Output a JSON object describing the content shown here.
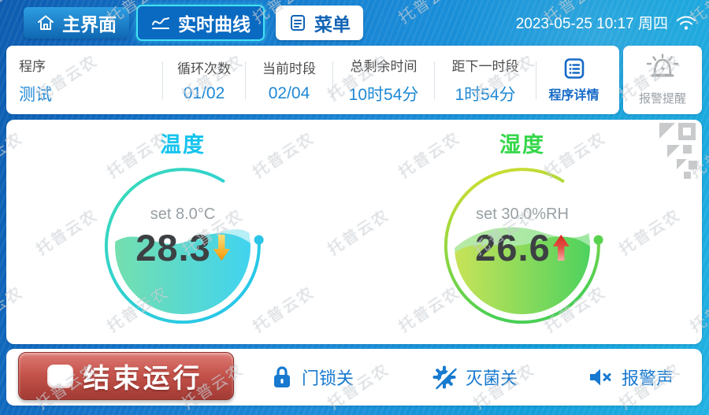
{
  "header": {
    "tabs": [
      {
        "label": "主界面"
      },
      {
        "label": "实时曲线"
      },
      {
        "label": "菜单"
      }
    ],
    "datetime": "2023-05-25 10:17 周四"
  },
  "status_bar": {
    "items": [
      {
        "label": "程序",
        "value": "测试"
      },
      {
        "label": "循环次数",
        "value": "01/02"
      },
      {
        "label": "当前时段",
        "value": "02/04"
      },
      {
        "label": "总剩余时间",
        "value": "10时54分"
      },
      {
        "label": "距下一时段",
        "value": "1时54分"
      }
    ],
    "program_details_label": "程序详情",
    "alarm_reminder_label": "报警提醒"
  },
  "main": {
    "temperature": {
      "title": "温度",
      "set_label": "set 8.0°C",
      "value": "28.3",
      "trend": "down"
    },
    "humidity": {
      "title": "湿度",
      "set_label": "set 30.0%RH",
      "value": "26.6",
      "trend": "up"
    }
  },
  "footer": {
    "stop_button_label": "结束运行",
    "door_lock_label": "门锁关",
    "sterilize_label": "灭菌关",
    "alarm_sound_label": "报警声"
  },
  "watermark": {
    "text": "托普云农"
  },
  "colors": {
    "accent_blue": "#1e88d5",
    "temperature_accent": "#14c3ee",
    "humidity_accent": "#35d64a",
    "stop_button_red": "#b5423c",
    "active_tab_border": "#41e2f4"
  }
}
